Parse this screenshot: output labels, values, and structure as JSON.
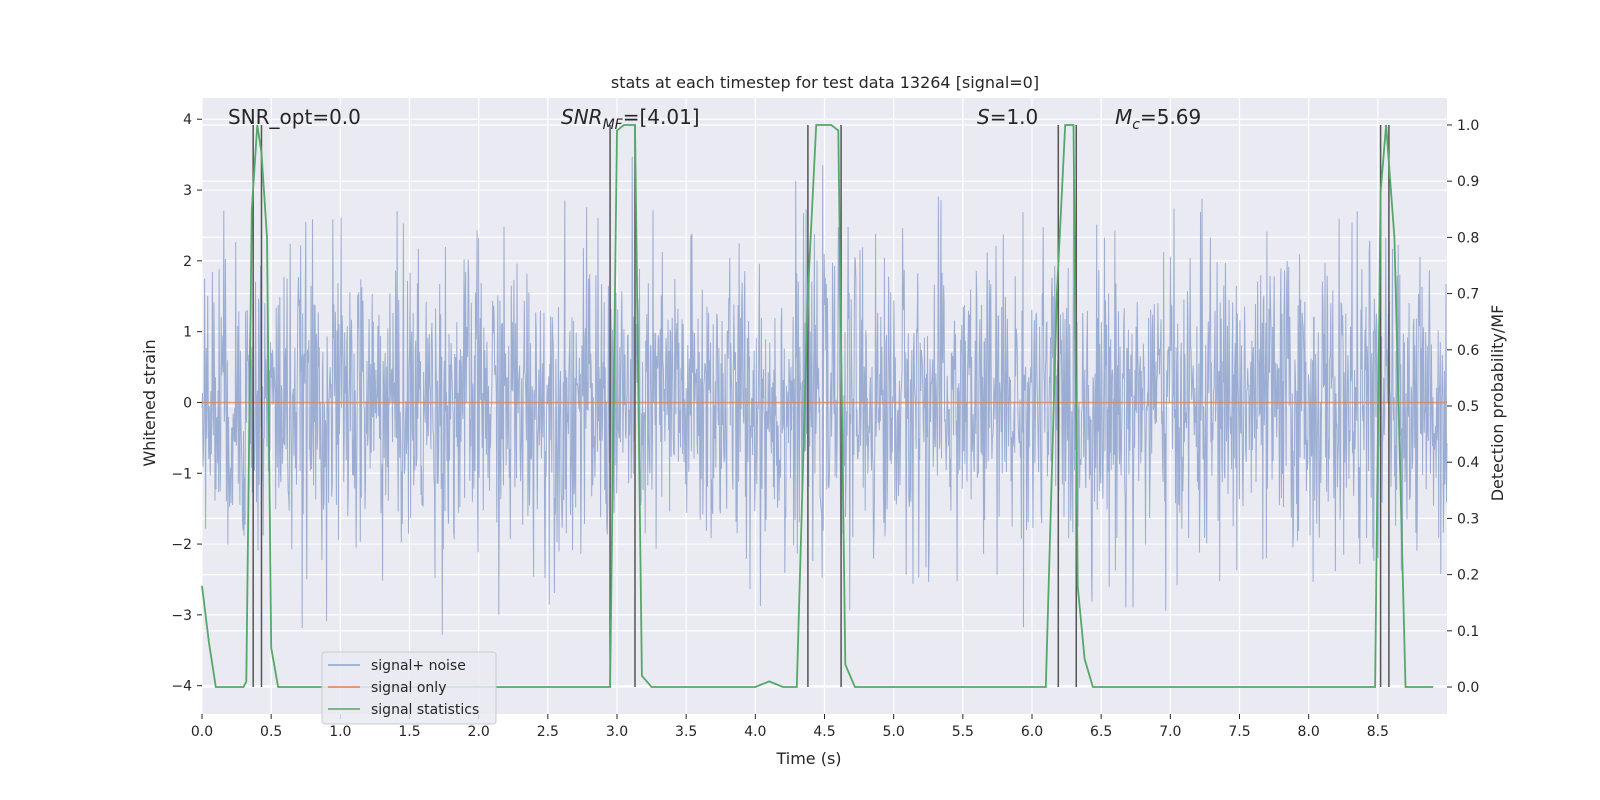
{
  "chart_data": {
    "type": "line",
    "title": "stats at each timestep for test data 13264 [signal=0]",
    "xlabel": "Time (s)",
    "ylabel": "Whitened strain",
    "ylabel_right": "Detection probability/MF",
    "xlim": [
      0,
      9.0
    ],
    "ylim": [
      -4.4,
      4.3
    ],
    "ylim_right": [
      -0.048,
      1.048
    ],
    "x_ticks": [
      "0.0",
      "0.5",
      "1.0",
      "1.5",
      "2.0",
      "2.5",
      "3.0",
      "3.5",
      "4.0",
      "4.5",
      "5.0",
      "5.5",
      "6.0",
      "6.5",
      "7.0",
      "7.5",
      "8.0",
      "8.5"
    ],
    "y_ticks": [
      "−4",
      "−3",
      "−2",
      "−1",
      "0",
      "1",
      "2",
      "3",
      "4"
    ],
    "y_ticks_right": [
      "0.0",
      "0.1",
      "0.2",
      "0.3",
      "0.4",
      "0.5",
      "0.6",
      "0.7",
      "0.8",
      "0.9",
      "1.0"
    ],
    "grid": true,
    "legend_position": "lower-left",
    "annotations": {
      "snr_opt": "SNR_opt=0.0",
      "snr_mf_main": "SNR",
      "snr_mf_sub": "MF",
      "snr_mf_value": "=[4.01]",
      "s_main": "S",
      "s_value": "=1.0",
      "mc_main": "M",
      "mc_sub": "c",
      "mc_value": "=5.69"
    },
    "series": [
      {
        "name": "signal+ noise",
        "color": "#8da2cc",
        "description_values": "whitened noise, amplitude roughly within [-4, 4]"
      },
      {
        "name": "signal only",
        "color": "#dd8452",
        "values_constant": 0
      },
      {
        "name": "signal statistics",
        "color": "#55a868",
        "axis": "right",
        "x": [
          0.0,
          0.05,
          0.1,
          0.2,
          0.3,
          0.32,
          0.36,
          0.4,
          0.43,
          0.47,
          0.5,
          0.55,
          0.8,
          2.95,
          3.0,
          3.05,
          3.13,
          3.18,
          3.25,
          3.8,
          4.0,
          4.1,
          4.2,
          4.3,
          4.38,
          4.44,
          4.55,
          4.6,
          4.65,
          4.72,
          5.5,
          6.1,
          6.18,
          6.24,
          6.3,
          6.33,
          6.38,
          6.44,
          6.5,
          8.0,
          8.48,
          8.52,
          8.56,
          8.62,
          8.7,
          8.8,
          8.9
        ],
        "y": [
          0.18,
          0.08,
          0.0,
          0.0,
          0.0,
          0.01,
          0.85,
          1.0,
          0.95,
          0.8,
          0.07,
          0.0,
          0.0,
          0.0,
          0.99,
          1.0,
          1.0,
          0.02,
          0.0,
          0.0,
          0.0,
          0.01,
          0.0,
          0.0,
          0.7,
          1.0,
          1.0,
          0.99,
          0.04,
          0.0,
          0.0,
          0.0,
          0.7,
          1.0,
          1.0,
          0.18,
          0.05,
          0.0,
          0.0,
          0.0,
          0.0,
          0.88,
          1.0,
          0.8,
          0.0,
          0.0,
          0.0
        ]
      }
    ],
    "vertical_markers": [
      0.37,
      0.43,
      2.95,
      3.13,
      4.38,
      4.62,
      6.19,
      6.32,
      8.52,
      8.58
    ],
    "marker_color": "#555555"
  }
}
